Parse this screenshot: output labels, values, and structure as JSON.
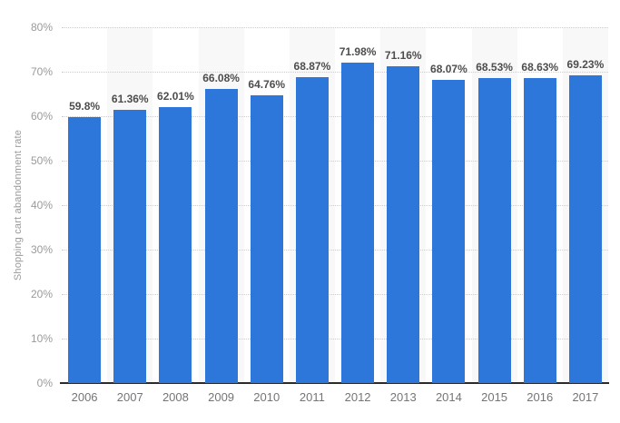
{
  "chart_data": {
    "type": "bar",
    "title": "",
    "xlabel": "",
    "ylabel": "Shopping cart abandonment rate",
    "categories": [
      "2006",
      "2007",
      "2008",
      "2009",
      "2010",
      "2011",
      "2012",
      "2013",
      "2014",
      "2015",
      "2016",
      "2017"
    ],
    "values": [
      59.8,
      61.36,
      62.01,
      66.08,
      64.76,
      68.87,
      71.98,
      71.16,
      68.07,
      68.53,
      68.63,
      69.23
    ],
    "value_labels": [
      "59.8%",
      "61.36%",
      "62.01%",
      "66.08%",
      "64.76%",
      "68.87%",
      "71.98%",
      "71.16%",
      "68.07%",
      "68.53%",
      "68.63%",
      "69.23%"
    ],
    "ylim": [
      0,
      80
    ],
    "ytick_step": 10,
    "ytick_labels": [
      "0%",
      "10%",
      "20%",
      "30%",
      "40%",
      "50%",
      "60%",
      "70%",
      "80%"
    ],
    "grid": "horizontal dotted lines at each 10% tick",
    "legend_position": "none",
    "striped_category_indices": [
      1,
      3,
      5,
      7,
      9,
      11
    ],
    "colors": {
      "bar": "#2d77db",
      "column_stripe": "#f8f8f8",
      "gridline": "#cccccc",
      "axis_line": "#2b2b2b",
      "value_label": "#4d4d4d",
      "y_tick_label": "#9a9a9a",
      "x_tick_label": "#757575",
      "y_axis_title": "#9a9a9a"
    }
  }
}
